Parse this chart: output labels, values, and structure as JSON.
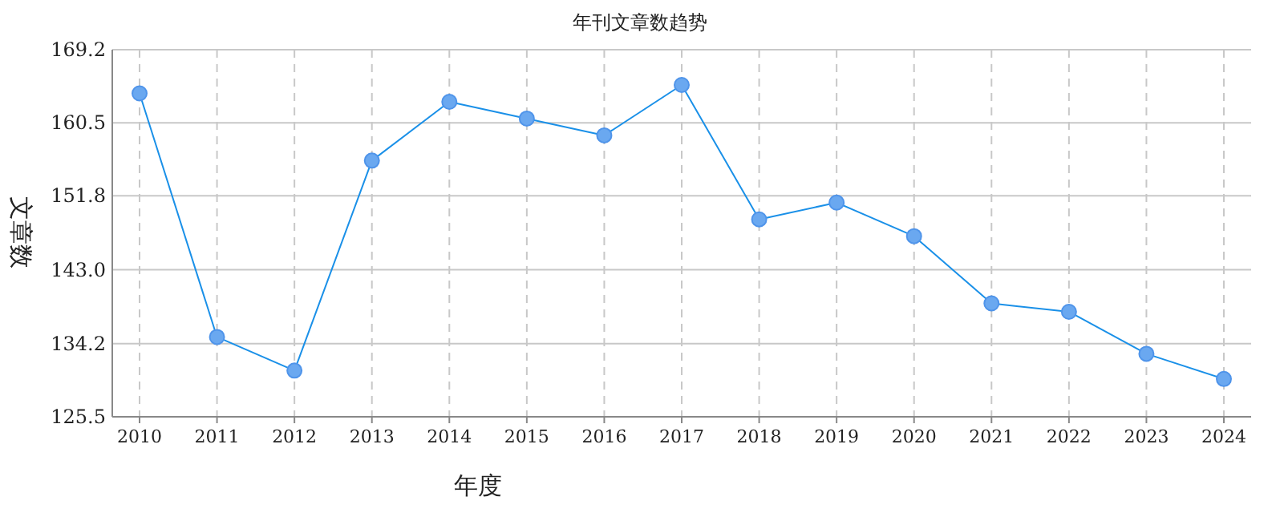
{
  "chart_data": {
    "type": "line",
    "title": "年刊文章数趋势",
    "xlabel": "年度",
    "ylabel": "文章数",
    "categories": [
      "2010",
      "2011",
      "2012",
      "2013",
      "2014",
      "2015",
      "2016",
      "2017",
      "2018",
      "2019",
      "2020",
      "2021",
      "2022",
      "2023",
      "2024"
    ],
    "series": [
      {
        "color": "#1a90e8",
        "values": [
          164,
          135,
          131,
          156,
          163,
          161,
          159,
          165,
          149,
          151,
          147,
          139,
          138,
          133,
          130
        ]
      }
    ],
    "ylim": [
      125.5,
      169.2
    ],
    "yticks": [
      125.5,
      134.2,
      {
        "value": 143,
        "label": "143.0"
      },
      151.8,
      160.5,
      169.2
    ],
    "grid": true,
    "marker": "circle"
  }
}
